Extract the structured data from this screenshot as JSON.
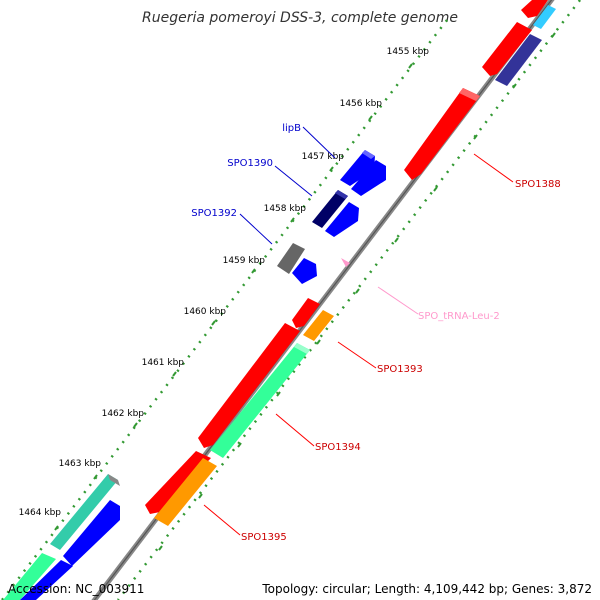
{
  "title": "Ruegeria pomeroyi DSS-3, complete genome",
  "accession_text": "Accession: NC_003911",
  "topology_text": "Topology: circular; Length: 4,109,442 bp; Genes: 3,872",
  "ticks": [
    "1455 kbp",
    "1456 kbp",
    "1457 kbp",
    "1458 kbp",
    "1459 kbp",
    "1460 kbp",
    "1461 kbp",
    "1462 kbp",
    "1463 kbp",
    "1464 kbp"
  ],
  "colors": {
    "red": "#ff0000",
    "blue": "#0000ff",
    "navy": "#000066",
    "gray": "#666666",
    "green": "#33ff99",
    "orange": "#ff9900",
    "purple": "#333399",
    "cyan": "#33ccff",
    "pink": "#ff99cc",
    "backbone": "#777777",
    "tick": "#339933"
  },
  "features": [
    {
      "name": "SPO1388",
      "strand": "reverse",
      "color": "red",
      "labeled": true
    },
    {
      "name": "SPO_tRNA-Leu-2",
      "strand": "reverse",
      "color": "pink",
      "labeled": true
    },
    {
      "name": "SPO1393",
      "strand": "reverse",
      "color": "orange",
      "labeled": true
    },
    {
      "name": "SPO1394",
      "strand": "reverse",
      "color": "green",
      "labeled": true
    },
    {
      "name": "SPO1395",
      "strand": "reverse",
      "color": "orange",
      "labeled": true
    },
    {
      "name": "lipB",
      "strand": "forward",
      "color": "blue",
      "labeled": true
    },
    {
      "name": "SPO1390",
      "strand": "forward",
      "color": "navy",
      "labeled": true
    },
    {
      "name": "SPO1392",
      "strand": "forward",
      "color": "gray",
      "labeled": true
    }
  ]
}
